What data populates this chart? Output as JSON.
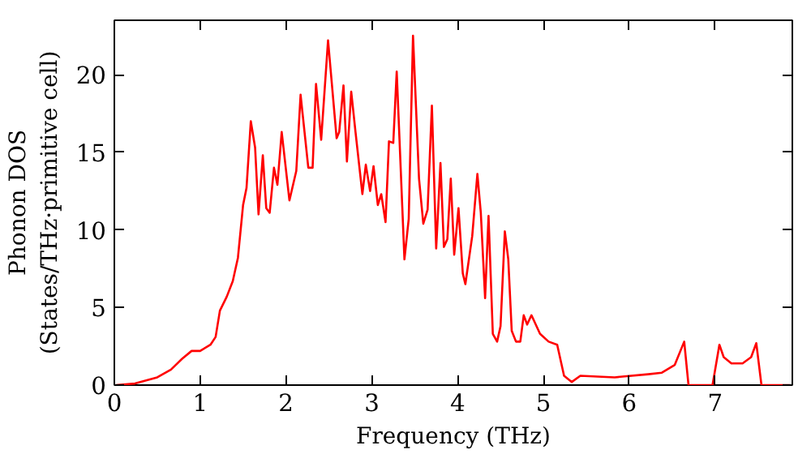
{
  "chart_data": {
    "type": "line",
    "xlabel": "Frequency (THz)",
    "ylabel": "Phonon DOS\n(States/THz·primitive cell)",
    "xlim": [
      0,
      7.9
    ],
    "ylim": [
      0,
      23.5
    ],
    "xticks": [
      0,
      1,
      2,
      3,
      4,
      5,
      6,
      7
    ],
    "yticks": [
      0,
      5,
      10,
      15,
      20
    ],
    "grid": false,
    "series": [
      {
        "color": "#ff0000",
        "x": [
          0.02,
          0.24,
          0.5,
          0.66,
          0.79,
          0.9,
          1.0,
          1.12,
          1.18,
          1.23,
          1.31,
          1.38,
          1.44,
          1.5,
          1.54,
          1.59,
          1.64,
          1.68,
          1.73,
          1.77,
          1.81,
          1.86,
          1.9,
          1.95,
          2.04,
          2.12,
          2.17,
          2.26,
          2.31,
          2.35,
          2.41,
          2.49,
          2.59,
          2.62,
          2.67,
          2.71,
          2.76,
          2.81,
          2.89,
          2.93,
          2.98,
          3.02,
          3.07,
          3.11,
          3.16,
          3.2,
          3.25,
          3.29,
          3.38,
          3.43,
          3.48,
          3.55,
          3.6,
          3.65,
          3.7,
          3.75,
          3.8,
          3.84,
          3.88,
          3.92,
          3.96,
          4.01,
          4.06,
          4.09,
          4.17,
          4.23,
          4.27,
          4.32,
          4.36,
          4.41,
          4.46,
          4.5,
          4.55,
          4.59,
          4.63,
          4.68,
          4.73,
          4.77,
          4.81,
          4.86,
          4.96,
          5.06,
          5.16,
          5.24,
          5.33,
          5.43,
          5.83,
          6.22,
          6.38,
          6.53,
          6.64,
          6.69,
          6.97,
          7.05,
          7.1,
          7.19,
          7.32,
          7.42,
          7.48,
          7.54,
          7.87
        ],
        "values": [
          0,
          0.1,
          0.5,
          1.0,
          1.7,
          2.2,
          2.2,
          2.6,
          3.1,
          4.8,
          5.7,
          6.7,
          8.2,
          11.6,
          12.7,
          17.0,
          15.3,
          11.0,
          14.8,
          11.4,
          11.1,
          14.0,
          12.9,
          16.3,
          11.9,
          13.8,
          18.7,
          14.0,
          14.0,
          19.4,
          15.8,
          22.2,
          15.9,
          16.3,
          19.3,
          14.4,
          18.9,
          16.3,
          12.3,
          14.2,
          12.5,
          14.1,
          11.6,
          12.3,
          10.5,
          15.7,
          15.6,
          20.2,
          8.1,
          10.7,
          22.5,
          13.3,
          10.4,
          11.3,
          18.0,
          8.8,
          14.3,
          8.9,
          9.4,
          13.3,
          8.4,
          11.4,
          7.2,
          6.5,
          9.6,
          13.6,
          11.1,
          5.6,
          10.9,
          3.3,
          2.8,
          3.8,
          9.9,
          8.1,
          3.5,
          2.8,
          2.8,
          4.5,
          3.9,
          4.5,
          3.3,
          2.8,
          2.6,
          0.6,
          0.2,
          0.6,
          0.5,
          0.7,
          0.8,
          1.3,
          2.8,
          0,
          0,
          2.6,
          1.8,
          1.4,
          1.4,
          1.8,
          2.7,
          0,
          0
        ]
      }
    ]
  }
}
